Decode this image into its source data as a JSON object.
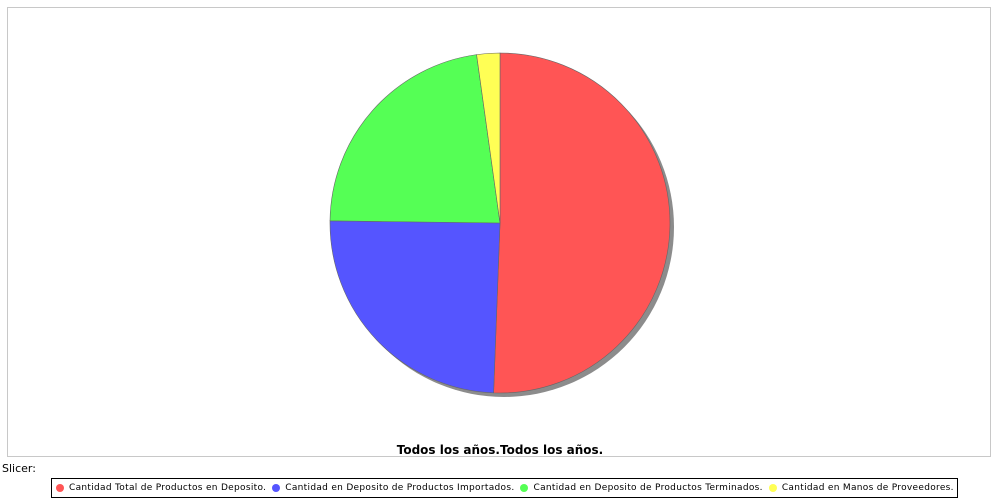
{
  "chart_data": {
    "type": "pie",
    "title": "Todos los años.Todos los años.",
    "slices": [
      {
        "name": "Cantidad Total de Productos en Deposito.",
        "value": 50.6,
        "color": "#ff5555"
      },
      {
        "name": "Cantidad en Deposito de Productos Importados.",
        "value": 24.6,
        "color": "#5555ff"
      },
      {
        "name": "Cantidad en Deposito de Productos Terminados.",
        "value": 22.6,
        "color": "#55ff55"
      },
      {
        "name": "Cantidad en Manos de Proveedores.",
        "value": 2.2,
        "color": "#ffff55"
      }
    ],
    "legend_position": "bottom"
  },
  "slicer_label": "Slicer:"
}
